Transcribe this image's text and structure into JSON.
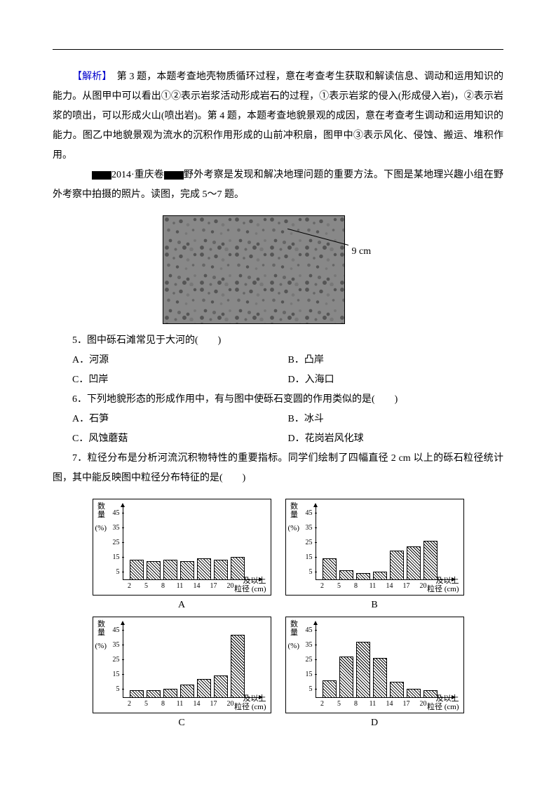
{
  "analysis": {
    "label": "【解析】",
    "text": "　第 3 题，本题考查地壳物质循环过程，意在考查考生获取和解读信息、调动和运用知识的能力。从图甲中可以看出①②表示岩浆活动形成岩石的过程，①表示岩浆的侵入(形成侵入岩)，②表示岩浆的喷出，可以形成火山(喷出岩)。第 4 题，本题考查地貌景观的成因，意在考查考生调动和运用知识的能力。图乙中地貌景观为流水的沉积作用形成的山前冲积扇，图甲中③表示风化、侵蚀、搬运、堆积作用。"
  },
  "source": {
    "year": "2014·重庆卷",
    "intro": "野外考察是发现和解决地理问题的重要方法。下图是某地理兴趣小组在野外考察中拍摄的照片。读图，完成 5～7 题。"
  },
  "gravel_scale": "9 cm",
  "q5": {
    "stem": "5．图中砾石滩常见于大河的(　　)",
    "A": "A．河源",
    "B": "B．凸岸",
    "C": "C．凹岸",
    "D": "D．入海口"
  },
  "q6": {
    "stem": "6．下列地貌形态的形成作用中，有与图中使砾石变圆的作用类似的是(　　)",
    "A": "A．石笋",
    "B": "B．冰斗",
    "C": "C．风蚀蘑菇",
    "D": "D．花岗岩风化球"
  },
  "q7": {
    "stem": "7．粒径分布是分析河流沉积物特性的重要指标。同学们绘制了四幅直径 2 cm 以上的砾石粒径统计图，其中能反映图中粒径分布特征的是(　　)"
  },
  "chart_common": {
    "y_label": "数量",
    "y_unit": "(%)",
    "x_unit_top": "及以上",
    "x_unit_bottom": "粒径  (cm)",
    "y_ticks": [
      5,
      15,
      25,
      35,
      45
    ],
    "x_ticks": [
      2,
      5,
      8,
      11,
      14,
      17,
      20
    ],
    "y_max": 50
  },
  "charts": {
    "A": {
      "label": "A",
      "values": [
        14,
        13,
        14,
        13,
        15,
        14,
        16
      ]
    },
    "B": {
      "label": "B",
      "values": [
        15,
        7,
        5,
        6,
        20,
        23,
        27
      ]
    },
    "C": {
      "label": "C",
      "values": [
        5,
        5,
        6,
        9,
        13,
        15,
        43
      ]
    },
    "D": {
      "label": "D",
      "values": [
        12,
        28,
        38,
        27,
        11,
        6,
        5
      ]
    }
  },
  "colors": {
    "analysis_label": "#0000cc",
    "text": "#000000",
    "bg": "#ffffff"
  }
}
